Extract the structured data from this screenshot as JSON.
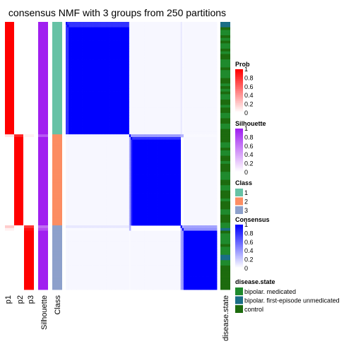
{
  "chart_data": {
    "type": "heatmap",
    "title": "consensus NMF with 3 groups from 250 partitions",
    "n_samples": 100,
    "groups": [
      {
        "class": 1,
        "n": 42
      },
      {
        "class": 2,
        "n": 34
      },
      {
        "class": 3,
        "n": 24
      }
    ],
    "ambiguous_rows": [
      {
        "row": 42,
        "p": [
          0.1,
          0.85,
          0.05
        ],
        "silhouette": 0.75
      },
      {
        "row": 76,
        "p": [
          0.2,
          0.0,
          0.8
        ],
        "silhouette": 0.65
      },
      {
        "row": 77,
        "p": [
          0.05,
          0.0,
          0.95
        ],
        "silhouette": 0.8
      }
    ],
    "columns": {
      "annotation": [
        "p1",
        "p2",
        "p3",
        "Silhouette",
        "Class"
      ],
      "right": "disease.state"
    },
    "colors": {
      "prob": "#ff0000",
      "silhouette": "#a020f0",
      "consensus": "#0000ff",
      "class": {
        "1": "#66c2a5",
        "2": "#fc8d62",
        "3": "#8da0cb"
      },
      "disease": {
        "bipolar. medicated": "#1f8a2d",
        "bipolar. first-episode unmedicated": "#1a6e86",
        "control": "#1d6b0e"
      }
    },
    "disease_state": [
      "bipolar. first-episode unmedicated",
      "bipolar. first-episode unmedicated",
      "control",
      "bipolar. medicated",
      "bipolar. medicated",
      "control",
      "bipolar. medicated",
      "control",
      "bipolar. medicated",
      "bipolar. medicated",
      "control",
      "bipolar. medicated",
      "control",
      "control",
      "bipolar. medicated",
      "bipolar. medicated",
      "bipolar. medicated",
      "control",
      "bipolar. medicated",
      "bipolar. medicated",
      "bipolar. medicated",
      "control",
      "control",
      "bipolar. medicated",
      "control",
      "bipolar. medicated",
      "control",
      "bipolar. medicated",
      "bipolar. medicated",
      "control",
      "control",
      "bipolar. medicated",
      "control",
      "control",
      "bipolar. medicated",
      "bipolar. medicated",
      "control",
      "control",
      "bipolar. medicated",
      "bipolar. medicated",
      "control",
      "control",
      "control",
      "control",
      "control",
      "bipolar. medicated",
      "bipolar. medicated",
      "control",
      "bipolar. medicated",
      "bipolar. medicated",
      "control",
      "control",
      "bipolar. medicated",
      "control",
      "control",
      "control",
      "bipolar. medicated",
      "bipolar. medicated",
      "bipolar. medicated",
      "control",
      "control",
      "bipolar. medicated",
      "bipolar. medicated",
      "control",
      "control",
      "control",
      "bipolar. medicated",
      "control",
      "control",
      "control",
      "bipolar. medicated",
      "bipolar. medicated",
      "control",
      "control",
      "control",
      "bipolar. medicated",
      "bipolar. medicated",
      "bipolar. first-episode unmedicated",
      "control",
      "bipolar. medicated",
      "bipolar. medicated",
      "bipolar. medicated",
      "bipolar. medicated",
      "control",
      "bipolar. medicated",
      "bipolar. medicated",
      "bipolar. medicated",
      "bipolar. first-episode unmedicated",
      "bipolar. first-episode unmedicated",
      "bipolar. medicated",
      "bipolar. medicated",
      "control",
      "control",
      "control",
      "control",
      "control",
      "control",
      "control",
      "control",
      "control"
    ],
    "legends": [
      {
        "title": "Prob",
        "type": "gradient",
        "color": "#ff0000",
        "ticks": [
          "1",
          "0.8",
          "0.6",
          "0.4",
          "0.2",
          "0"
        ]
      },
      {
        "title": "Silhouette",
        "type": "gradient",
        "color": "#a020f0",
        "ticks": [
          "1",
          "0.8",
          "0.6",
          "0.4",
          "0.2",
          "0"
        ]
      },
      {
        "title": "Class",
        "type": "discrete",
        "items": [
          {
            "label": "1",
            "color": "#66c2a5"
          },
          {
            "label": "2",
            "color": "#fc8d62"
          },
          {
            "label": "3",
            "color": "#8da0cb"
          }
        ]
      },
      {
        "title": "Consensus",
        "type": "gradient",
        "color": "#0000ff",
        "ticks": [
          "1",
          "0.8",
          "0.6",
          "0.4",
          "0.2",
          "0"
        ]
      },
      {
        "title": "disease.state",
        "type": "discrete",
        "items": [
          {
            "label": "bipolar. medicated",
            "color": "#1f8a2d"
          },
          {
            "label": "bipolar. first-episode unmedicated",
            "color": "#1a6e86"
          },
          {
            "label": "control",
            "color": "#1d6b0e"
          }
        ]
      }
    ]
  }
}
